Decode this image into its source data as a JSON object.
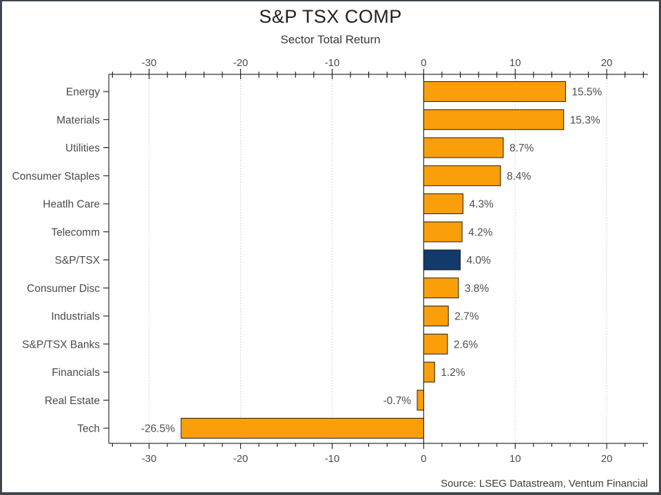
{
  "header": {
    "title": "S&P TSX COMP",
    "subtitle": "Sector Total Return"
  },
  "footer": {
    "source": "Source: LSEG Datastream, Ventum Financial"
  },
  "chart_data": {
    "type": "bar",
    "orientation": "horizontal",
    "title": "S&P TSX COMP",
    "subtitle": "Sector Total Return",
    "xlabel": "",
    "ylabel": "",
    "categories": [
      "Energy",
      "Materials",
      "Utilities",
      "Consumer Staples",
      "Heatlh Care",
      "Telecomm",
      "S&P/TSX",
      "Consumer Disc",
      "Industrials",
      "S&P/TSX Banks",
      "Financials",
      "Real Estate",
      "Tech"
    ],
    "values": [
      15.5,
      15.3,
      8.7,
      8.4,
      4.3,
      4.2,
      4.0,
      3.8,
      2.7,
      2.6,
      1.2,
      -0.7,
      -26.5
    ],
    "value_labels": [
      "15.5%",
      "15.3%",
      "8.7%",
      "8.4%",
      "4.3%",
      "4.2%",
      "4.0%",
      "3.8%",
      "2.7%",
      "2.6%",
      "1.2%",
      "-0.7%",
      "-26.5%"
    ],
    "highlight_category": "S&P/TSX",
    "xlim": [
      -34.4,
      24.5
    ],
    "x_major_ticks": [
      -30,
      -20,
      -10,
      0,
      10,
      20
    ],
    "x_tick_labels": [
      "-30",
      "-20",
      "-10",
      "0",
      "10",
      "20"
    ],
    "x_minor_tick_step": 2,
    "grid": "dotted-vertical-at-major-ticks",
    "zero_line": "solid-black",
    "legend": "none",
    "colors": {
      "bar": "#FA9E0A",
      "highlight_bar": "#123A6B",
      "bar_border": "#1c1c1c",
      "axis": "#000000",
      "gridline": "#c9c9c9",
      "tick_label": "#4a4a4a",
      "category_label": "#4a4a4a",
      "value_label": "#4d4d4d"
    }
  }
}
